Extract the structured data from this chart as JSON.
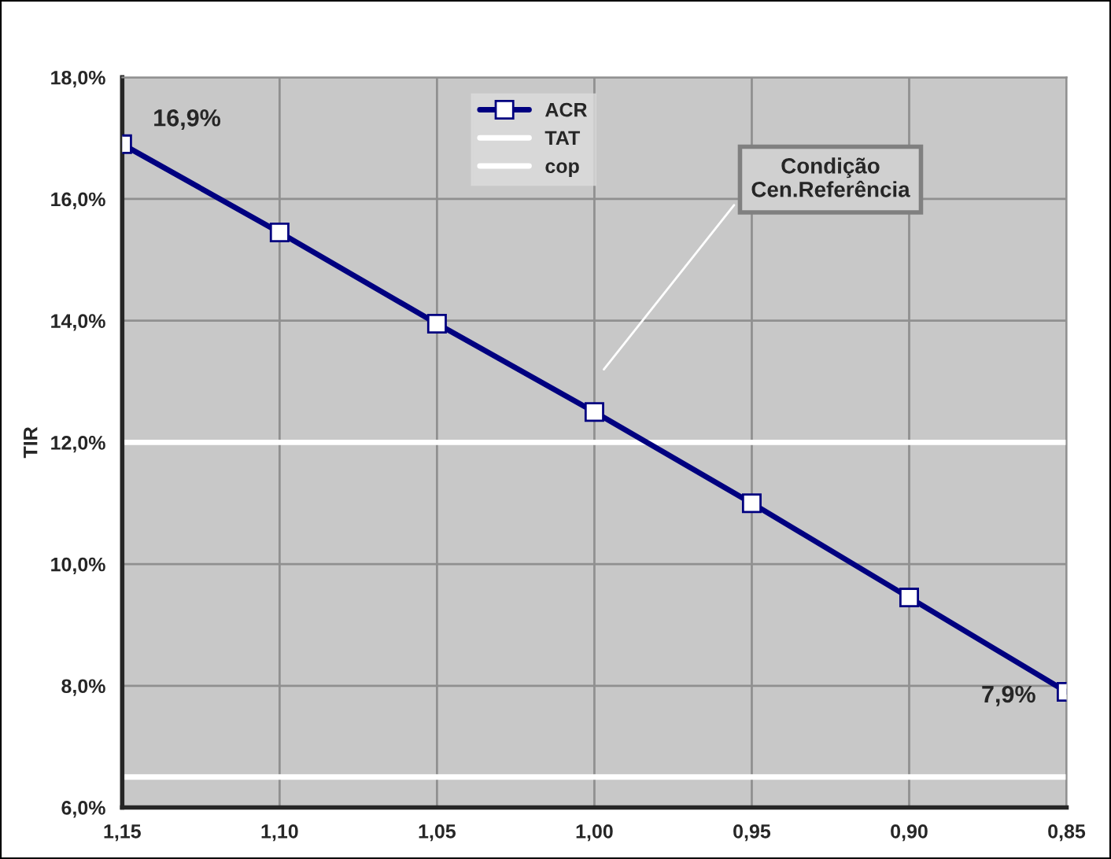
{
  "chart_data": {
    "type": "line",
    "ylabel": "TIR",
    "x": [
      1.15,
      1.1,
      1.05,
      1.0,
      0.95,
      0.9,
      0.85
    ],
    "series": [
      {
        "name": "ACR",
        "color": "#000080",
        "marker": "square",
        "values": [
          16.9,
          15.45,
          13.95,
          12.5,
          11.0,
          9.45,
          7.9
        ],
        "value_labels": [
          "16,9%",
          null,
          null,
          null,
          null,
          null,
          "7,9%"
        ]
      }
    ],
    "ref_lines": [
      {
        "axis": "y",
        "value": 12.0,
        "label": "TAT",
        "color": "#ffffff"
      },
      {
        "axis": "y",
        "value": 6.5,
        "label": "cop",
        "color": "#ffffff"
      }
    ],
    "xlim": [
      1.15,
      0.85
    ],
    "xticks": [
      {
        "value": 1.15,
        "label": "1,15"
      },
      {
        "value": 1.1,
        "label": "1,10"
      },
      {
        "value": 1.05,
        "label": "1,05"
      },
      {
        "value": 1.0,
        "label": "1,00"
      },
      {
        "value": 0.95,
        "label": "0,95"
      },
      {
        "value": 0.9,
        "label": "0,90"
      },
      {
        "value": 0.85,
        "label": "0,85"
      }
    ],
    "ylim": [
      6,
      18
    ],
    "yticks": [
      {
        "value": 6,
        "label": "6,0%"
      },
      {
        "value": 8,
        "label": "8,0%"
      },
      {
        "value": 10,
        "label": "10,0%"
      },
      {
        "value": 12,
        "label": "12,0%"
      },
      {
        "value": 14,
        "label": "14,0%"
      },
      {
        "value": 16,
        "label": "16,0%"
      },
      {
        "value": 18,
        "label": "18,0%"
      }
    ],
    "annotations": [
      "Condição\nCen.Referência"
    ],
    "grid": true,
    "legend": "top",
    "line_style": "solid"
  }
}
